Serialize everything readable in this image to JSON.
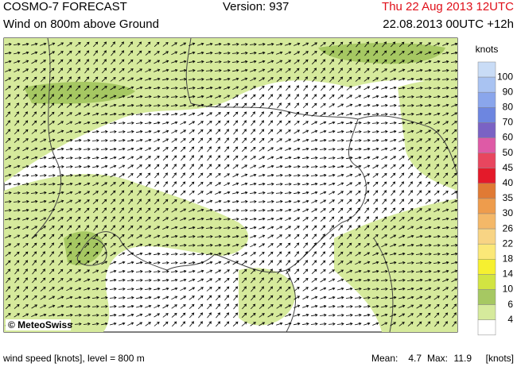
{
  "header": {
    "title": "COSMO-7 FORECAST",
    "version": "Version: 937",
    "valid_time": "Thu 22 Aug 2013 12UTC",
    "subtitle": "Wind on 800m above Ground",
    "run": "22.08.2013 00UTC +12h"
  },
  "map": {
    "credit": "© MeteoSwiss"
  },
  "legend": {
    "unit": "knots",
    "labels": [
      "100",
      "90",
      "80",
      "70",
      "60",
      "50",
      "45",
      "40",
      "35",
      "30",
      "26",
      "22",
      "18",
      "14",
      "10",
      "6",
      "4"
    ],
    "colors": [
      "#c9dcf6",
      "#a9c3f2",
      "#8aa6ec",
      "#6d86e0",
      "#7a62c4",
      "#de5aa6",
      "#e8465e",
      "#e41a2a",
      "#e07a34",
      "#ee9c4c",
      "#f4b868",
      "#f8d484",
      "#fbe878",
      "#f6f030",
      "#d2e442",
      "#a6c862",
      "#d6ea9c",
      "#ffffff"
    ]
  },
  "footer": {
    "left": "wind speed [knots], level = 800 m",
    "mean_label": "Mean:",
    "mean": "4.7",
    "max_label": "Max:",
    "max": "11.9",
    "unit": "[knots]"
  }
}
